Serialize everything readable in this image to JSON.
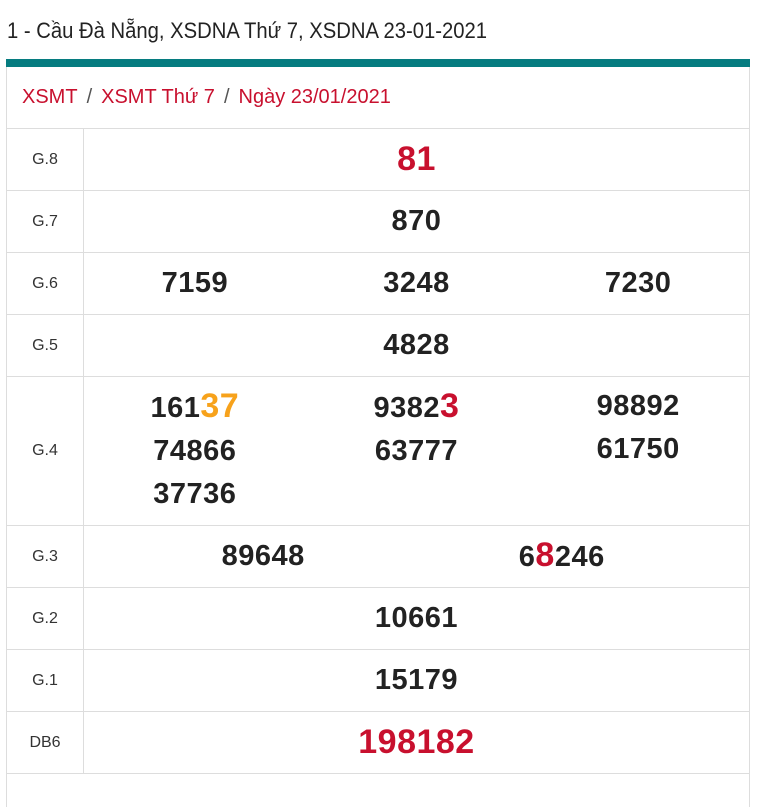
{
  "title": "1 - Cầu Đà Nẵng, XSDNA Thứ 7, XSDNA 23-01-2021",
  "colors": {
    "accent": "#067c80",
    "red": "#c8102e",
    "orange": "#f7a21b"
  },
  "breadcrumb": [
    "XSMT",
    "XSMT Thứ 7",
    "Ngày 23/01/2021"
  ],
  "breadcrumb_separator": "/",
  "prizes": [
    {
      "label": "G.8",
      "cols": [
        [
          {
            "pre": "81",
            "hl": "",
            "post": "",
            "whole_color": "red"
          }
        ]
      ]
    },
    {
      "label": "G.7",
      "cols": [
        [
          {
            "pre": "870",
            "hl": "",
            "post": ""
          }
        ]
      ]
    },
    {
      "label": "G.6",
      "cols": [
        [
          {
            "pre": "7159",
            "hl": "",
            "post": ""
          }
        ],
        [
          {
            "pre": "3248",
            "hl": "",
            "post": ""
          }
        ],
        [
          {
            "pre": "7230",
            "hl": "",
            "post": ""
          }
        ]
      ]
    },
    {
      "label": "G.5",
      "cols": [
        [
          {
            "pre": "4828",
            "hl": "",
            "post": ""
          }
        ]
      ]
    },
    {
      "label": "G.4",
      "cols": [
        [
          {
            "pre": "161",
            "hl": "37",
            "post": "",
            "hl_color": "orange"
          },
          {
            "pre": "74866",
            "hl": "",
            "post": ""
          },
          {
            "pre": "37736",
            "hl": "",
            "post": ""
          }
        ],
        [
          {
            "pre": "9382",
            "hl": "3",
            "post": "",
            "hl_color": "red"
          },
          {
            "pre": "63777",
            "hl": "",
            "post": ""
          }
        ],
        [
          {
            "pre": "98892",
            "hl": "",
            "post": ""
          },
          {
            "pre": "61750",
            "hl": "",
            "post": ""
          }
        ]
      ]
    },
    {
      "label": "G.3",
      "cols": [
        [
          {
            "pre": "89648",
            "hl": "",
            "post": ""
          }
        ],
        [
          {
            "pre": "6",
            "hl": "8",
            "post": "246",
            "hl_color": "red"
          }
        ]
      ]
    },
    {
      "label": "G.2",
      "cols": [
        [
          {
            "pre": "10661",
            "hl": "",
            "post": ""
          }
        ]
      ]
    },
    {
      "label": "G.1",
      "cols": [
        [
          {
            "pre": "15179",
            "hl": "",
            "post": ""
          }
        ]
      ]
    },
    {
      "label": "DB6",
      "cols": [
        [
          {
            "pre": "198182",
            "hl": "",
            "post": "",
            "whole_color": "red"
          }
        ]
      ]
    }
  ]
}
